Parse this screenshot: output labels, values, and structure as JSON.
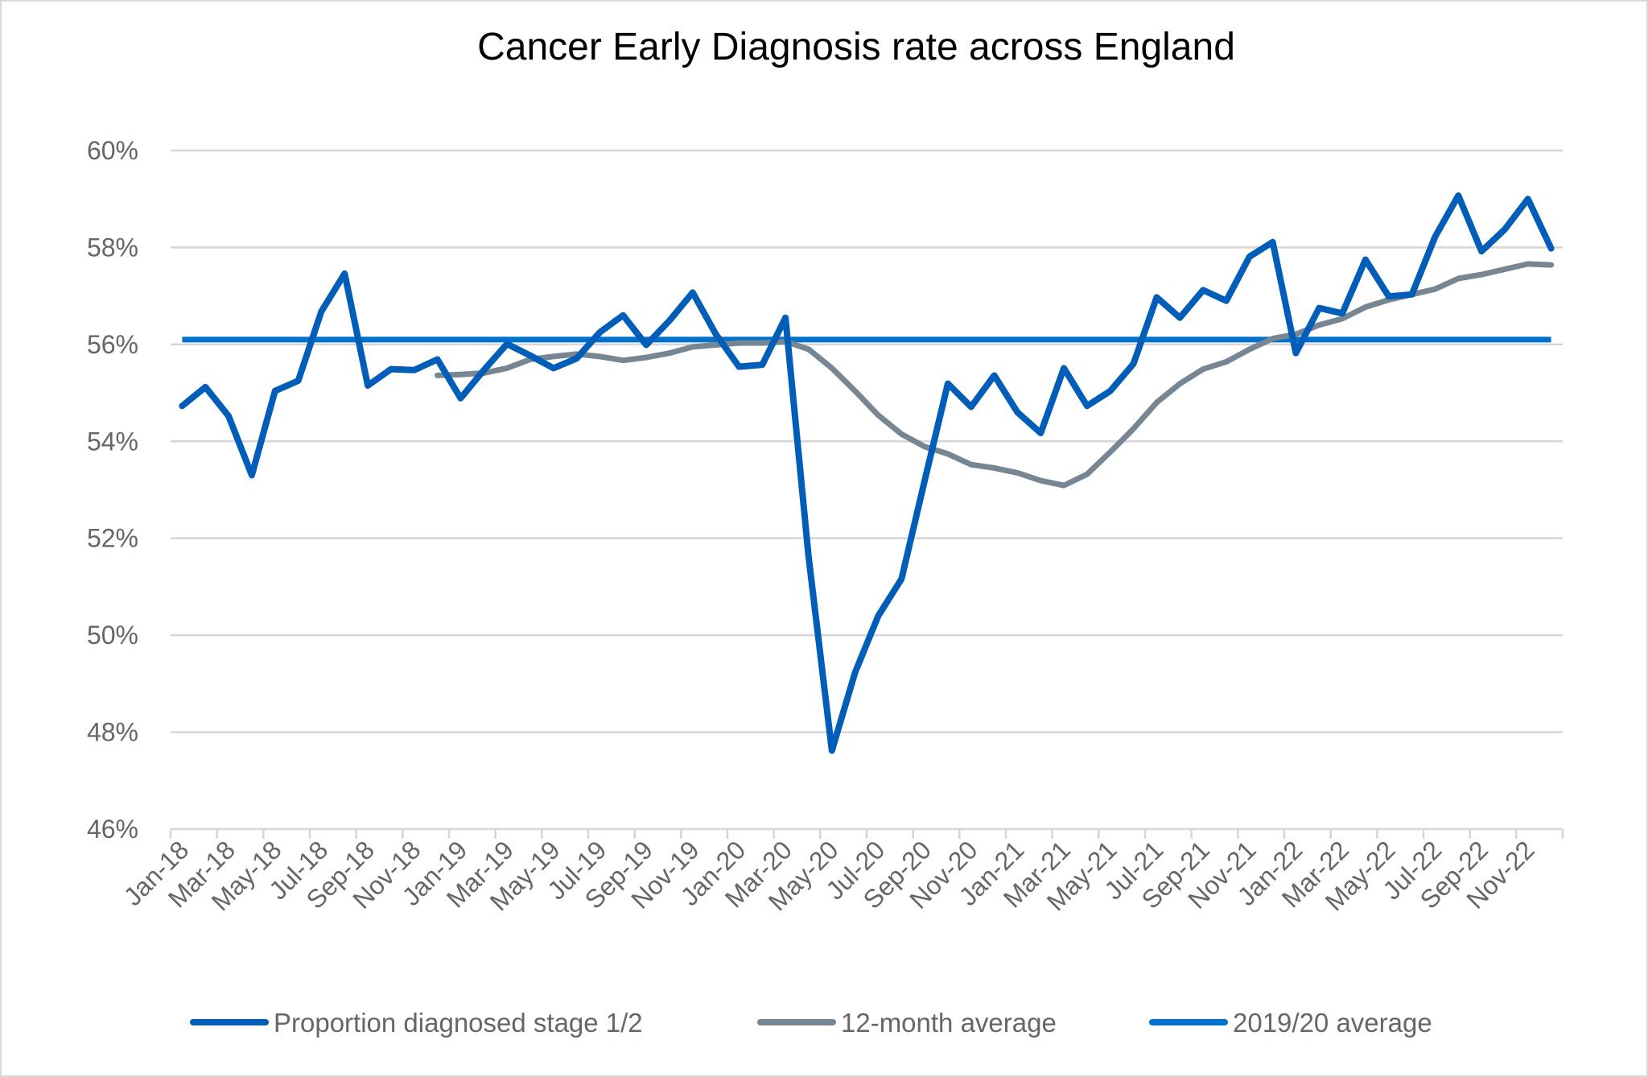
{
  "chart_data": {
    "type": "line",
    "title": "Cancer Early Diagnosis rate across England",
    "xlabel": "",
    "ylabel": "",
    "ylim": [
      46,
      60
    ],
    "y_ticks": [
      "46%",
      "48%",
      "50%",
      "52%",
      "54%",
      "56%",
      "58%",
      "60%"
    ],
    "y_tick_values": [
      46,
      48,
      50,
      52,
      54,
      56,
      58,
      60
    ],
    "grid": true,
    "legend_position": "bottom",
    "x": [
      "Jan-18",
      "Feb-18",
      "Mar-18",
      "Apr-18",
      "May-18",
      "Jun-18",
      "Jul-18",
      "Aug-18",
      "Sep-18",
      "Oct-18",
      "Nov-18",
      "Dec-18",
      "Jan-19",
      "Feb-19",
      "Mar-19",
      "Apr-19",
      "May-19",
      "Jun-19",
      "Jul-19",
      "Aug-19",
      "Sep-19",
      "Oct-19",
      "Nov-19",
      "Dec-19",
      "Jan-20",
      "Feb-20",
      "Mar-20",
      "Apr-20",
      "May-20",
      "Jun-20",
      "Jul-20",
      "Aug-20",
      "Sep-20",
      "Oct-20",
      "Nov-20",
      "Dec-20",
      "Jan-21",
      "Feb-21",
      "Mar-21",
      "Apr-21",
      "May-21",
      "Jun-21",
      "Jul-21",
      "Aug-21",
      "Sep-21",
      "Oct-21",
      "Nov-21",
      "Dec-21",
      "Jan-22",
      "Feb-22",
      "Mar-22",
      "Apr-22",
      "May-22",
      "Jun-22",
      "Jul-22",
      "Aug-22",
      "Sep-22",
      "Oct-22",
      "Nov-22",
      "Dec-22"
    ],
    "x_tick_labels": [
      "Jan-18",
      "Mar-18",
      "May-18",
      "Jul-18",
      "Sep-18",
      "Nov-18",
      "Jan-19",
      "Mar-19",
      "May-19",
      "Jul-19",
      "Sep-19",
      "Nov-19",
      "Jan-20",
      "Mar-20",
      "May-20",
      "Jul-20",
      "Sep-20",
      "Nov-20",
      "Jan-21",
      "Mar-21",
      "May-21",
      "Jul-21",
      "Sep-21",
      "Nov-21",
      "Jan-22",
      "Mar-22",
      "May-22",
      "Jul-22",
      "Sep-22",
      "Nov-22"
    ],
    "series": [
      {
        "name": "Proportion diagnosed stage 1/2",
        "color": "#005EB8",
        "values": [
          54.73,
          55.12,
          54.52,
          53.3,
          55.04,
          55.25,
          56.68,
          57.46,
          55.15,
          55.49,
          55.47,
          55.69,
          54.89,
          55.47,
          56.01,
          55.77,
          55.51,
          55.71,
          56.25,
          56.6,
          55.99,
          56.49,
          57.07,
          56.21,
          55.54,
          55.58,
          56.55,
          51.61,
          47.62,
          49.23,
          50.4,
          51.16,
          53.19,
          55.19,
          54.71,
          55.36,
          54.6,
          54.17,
          55.51,
          54.73,
          55.04,
          55.6,
          56.97,
          56.55,
          57.12,
          56.9,
          57.81,
          58.11,
          55.82,
          56.75,
          56.64,
          57.75,
          56.99,
          57.03,
          58.22,
          59.07,
          57.92,
          58.37,
          59.0,
          57.98
        ]
      },
      {
        "name": "12-month average",
        "color": "#768692",
        "values": [
          null,
          null,
          null,
          null,
          null,
          null,
          null,
          null,
          null,
          null,
          null,
          55.36,
          55.38,
          55.41,
          55.51,
          55.69,
          55.75,
          55.8,
          55.75,
          55.67,
          55.73,
          55.82,
          55.95,
          55.99,
          56.03,
          56.03,
          56.06,
          55.9,
          55.51,
          55.04,
          54.54,
          54.15,
          53.89,
          53.74,
          53.52,
          53.45,
          53.35,
          53.19,
          53.09,
          53.32,
          53.78,
          54.26,
          54.8,
          55.19,
          55.49,
          55.64,
          55.9,
          56.12,
          56.21,
          56.4,
          56.53,
          56.77,
          56.92,
          57.03,
          57.14,
          57.36,
          57.44,
          57.55,
          57.66,
          57.64
        ]
      },
      {
        "name": "2019/20 average",
        "color": "#0072CE",
        "constant": 56.1
      }
    ]
  }
}
